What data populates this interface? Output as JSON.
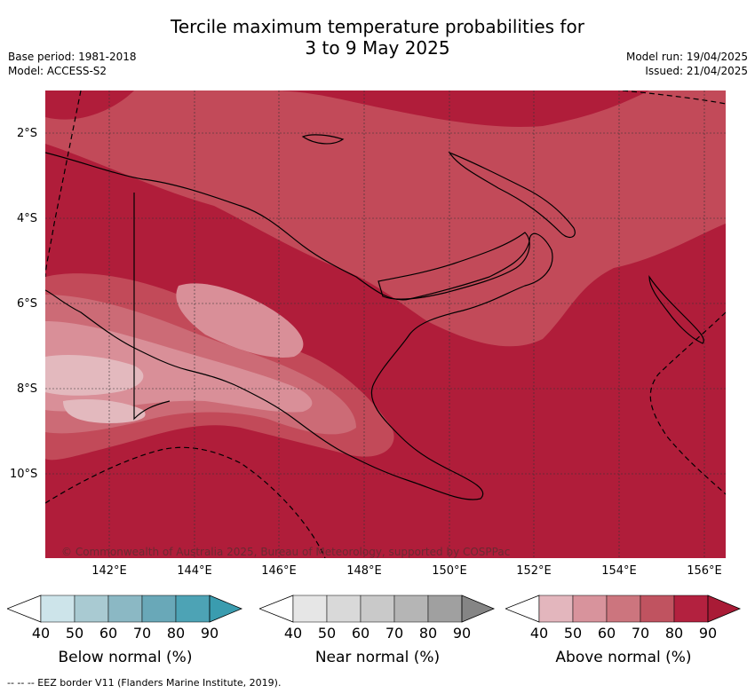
{
  "title_line1": "Tercile maximum temperature probabilities for",
  "title_line2": "3 to 9 May 2025",
  "meta_left": [
    "Base period: 1981-2018",
    "Model: ACCESS-S2"
  ],
  "meta_right": [
    "Model run: 19/04/2025",
    "Issued: 21/04/2025"
  ],
  "lat_labels": [
    "2°S",
    "4°S",
    "6°S",
    "8°S",
    "10°S"
  ],
  "lon_labels": [
    "142°E",
    "144°E",
    "146°E",
    "148°E",
    "150°E",
    "152°E",
    "154°E",
    "156°E"
  ],
  "copyright": "© Commonwealth of Australia 2025, Bureau of Meteorology, supported by COSPPac",
  "legends": [
    {
      "title": "Below normal (%)",
      "ticks": [
        "40",
        "50",
        "60",
        "70",
        "80",
        "90"
      ],
      "colors": [
        "#ffffff",
        "#cde4ea",
        "#a9cad2",
        "#8bb8c4",
        "#69a8b8",
        "#4da3b5",
        "#3a9caf"
      ]
    },
    {
      "title": "Near normal (%)",
      "ticks": [
        "40",
        "50",
        "60",
        "70",
        "80",
        "90"
      ],
      "colors": [
        "#ffffff",
        "#e6e6e6",
        "#d9d9d9",
        "#c9c9c9",
        "#b5b5b5",
        "#a0a0a0",
        "#858585"
      ]
    },
    {
      "title": "Above normal (%)",
      "ticks": [
        "40",
        "50",
        "60",
        "70",
        "80",
        "90"
      ],
      "colors": [
        "#ffffff",
        "#e3b6bd",
        "#d8939c",
        "#cc757e",
        "#c05360",
        "#b3213f",
        "#a91b36"
      ]
    }
  ],
  "footer": "--  --  -- EEZ border V11 (Flanders Marine Institute, 2019).",
  "map_colors": {
    "above_80_90": "#b01d3a",
    "above_70_80": "#c24a59",
    "above_60_70": "#cc6b76",
    "above_50_60": "#d98f98",
    "above_40_50": "#e3b9be"
  }
}
